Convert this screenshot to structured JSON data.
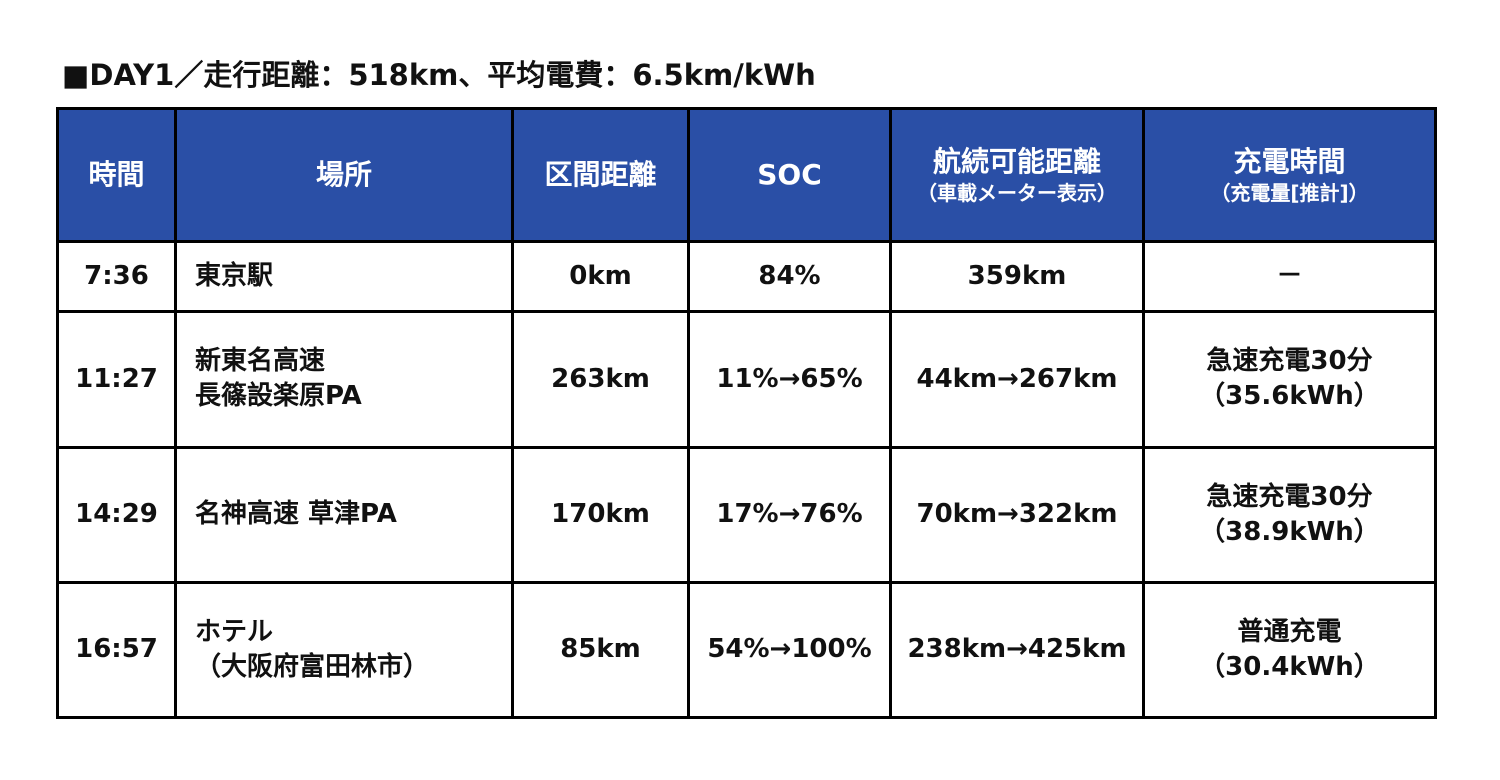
{
  "title": "■DAY1／走行距離：518km、平均電費：6.5km/kWh",
  "table": {
    "headers": [
      [
        "時間"
      ],
      [
        "場所"
      ],
      [
        "区間距離"
      ],
      [
        "SOC"
      ],
      [
        "航続可能距離",
        "（車載メーター表示）"
      ],
      [
        "充電時間",
        "（充電量[推計]）"
      ]
    ],
    "rows": [
      [
        [
          "7:36"
        ],
        [
          "東京駅"
        ],
        [
          "0km"
        ],
        [
          "84%"
        ],
        [
          "359km"
        ],
        [
          "－"
        ]
      ],
      [
        [
          "11:27"
        ],
        [
          "新東名高速",
          "長篠設楽原PA"
        ],
        [
          "263km"
        ],
        [
          "11%→65%"
        ],
        [
          "44km→267km"
        ],
        [
          "急速充電30分",
          "（35.6kWh）"
        ]
      ],
      [
        [
          "14:29"
        ],
        [
          "名神高速 草津PA"
        ],
        [
          "170km"
        ],
        [
          "17%→76%"
        ],
        [
          "70km→322km"
        ],
        [
          "急速充電30分",
          "（38.9kWh）"
        ]
      ],
      [
        [
          "16:57"
        ],
        [
          "ホテル",
          "（大阪府富田林市）"
        ],
        [
          "85km"
        ],
        [
          "54%→100%"
        ],
        [
          "238km→425km"
        ],
        [
          "普通充電",
          "（30.4kWh）"
        ]
      ]
    ]
  }
}
